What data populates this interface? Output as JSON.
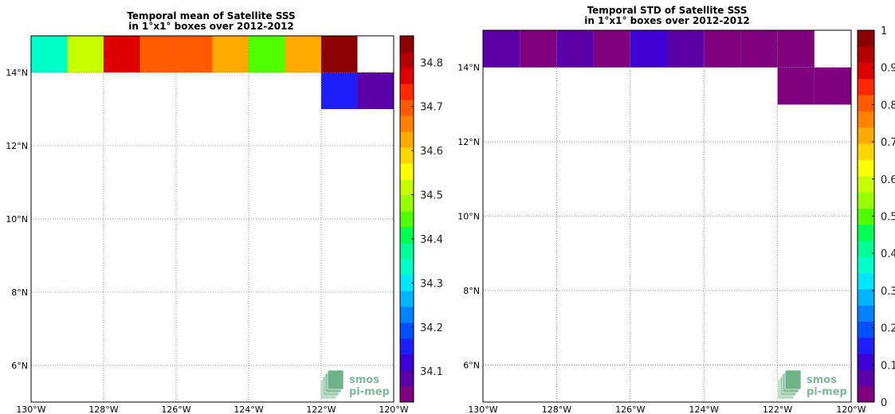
{
  "axes": {
    "lon_ticks": [
      -130,
      -128,
      -126,
      -124,
      -122,
      -120
    ],
    "lon_labels": [
      "130°W",
      "128°W",
      "126°W",
      "124°W",
      "122°W",
      "120°W"
    ],
    "lat_ticks": [
      6,
      8,
      10,
      12,
      14
    ],
    "lat_labels": [
      "6°N",
      "8°N",
      "10°N",
      "12°N",
      "14°N"
    ],
    "lon_range": [
      -130,
      -120
    ],
    "lat_range": [
      5,
      15
    ]
  },
  "colormap": [
    "#7f007f",
    "#5a00a8",
    "#3c00d2",
    "#1e1efa",
    "#0050ff",
    "#0082ff",
    "#00b4ff",
    "#00e6ff",
    "#00ffc8",
    "#00ff96",
    "#00ff50",
    "#50ff00",
    "#96ff00",
    "#c8ff00",
    "#ffff00",
    "#ffd700",
    "#ffaa00",
    "#ff8200",
    "#ff5a00",
    "#ff2800",
    "#dc0000",
    "#b40000",
    "#8b0000"
  ],
  "logo": {
    "line1": "smos",
    "line2": "pi-mep"
  },
  "chart_data": [
    {
      "type": "heatmap",
      "title": "Temporal mean of Satellite SSS\nin 1°x1° boxes over 2012-2012",
      "title_lines": [
        "Temporal mean of Satellite SSS",
        "in 1°x1° boxes over 2012-2012"
      ],
      "grid": true,
      "colorbar": {
        "range": [
          34.03,
          34.86
        ],
        "ticks": [
          34.1,
          34.2,
          34.3,
          34.4,
          34.5,
          34.6,
          34.7,
          34.8
        ],
        "tick_labels": [
          "34.1",
          "34.2",
          "34.3",
          "34.4",
          "34.5",
          "34.6",
          "34.7",
          "34.8"
        ]
      },
      "cells": [
        {
          "lon": -130,
          "lat": 14,
          "value": 34.33
        },
        {
          "lon": -129,
          "lat": 14,
          "value": 34.52
        },
        {
          "lon": -128,
          "lat": 14,
          "value": 34.78
        },
        {
          "lon": -127,
          "lat": 14,
          "value": 34.68
        },
        {
          "lon": -126,
          "lat": 14,
          "value": 34.68
        },
        {
          "lon": -125,
          "lat": 14,
          "value": 34.64
        },
        {
          "lon": -124,
          "lat": 14,
          "value": 34.43
        },
        {
          "lon": -123,
          "lat": 14,
          "value": 34.61
        },
        {
          "lon": -122,
          "lat": 14,
          "value": 34.85
        },
        {
          "lon": -122,
          "lat": 13,
          "value": 34.17
        },
        {
          "lon": -121,
          "lat": 13,
          "value": 34.08
        }
      ]
    },
    {
      "type": "heatmap",
      "title": "Temporal STD of Satellite SSS\nin 1°x1° boxes over 2012-2012",
      "title_lines": [
        "Temporal STD of Satellite SSS",
        "in 1°x1° boxes over 2012-2012"
      ],
      "grid": true,
      "colorbar": {
        "range": [
          0,
          1
        ],
        "ticks": [
          0,
          0.1,
          0.2,
          0.3,
          0.4,
          0.5,
          0.6,
          0.7,
          0.8,
          0.9,
          1
        ],
        "tick_labels": [
          "0",
          "0.1",
          "0.2",
          "0.3",
          "0.4",
          "0.5",
          "0.6",
          "0.7",
          "0.8",
          "0.9",
          "1"
        ]
      },
      "cells": [
        {
          "lon": -130,
          "lat": 14,
          "value": 0.06
        },
        {
          "lon": -129,
          "lat": 14,
          "value": 0.03
        },
        {
          "lon": -128,
          "lat": 14,
          "value": 0.08
        },
        {
          "lon": -127,
          "lat": 14,
          "value": 0.03
        },
        {
          "lon": -126,
          "lat": 14,
          "value": 0.13
        },
        {
          "lon": -125,
          "lat": 14,
          "value": 0.07
        },
        {
          "lon": -124,
          "lat": 14,
          "value": 0.03
        },
        {
          "lon": -123,
          "lat": 14,
          "value": 0.03
        },
        {
          "lon": -122,
          "lat": 14,
          "value": 0.03
        },
        {
          "lon": -122,
          "lat": 13,
          "value": 0.03
        },
        {
          "lon": -121,
          "lat": 13,
          "value": 0.03
        }
      ]
    }
  ]
}
